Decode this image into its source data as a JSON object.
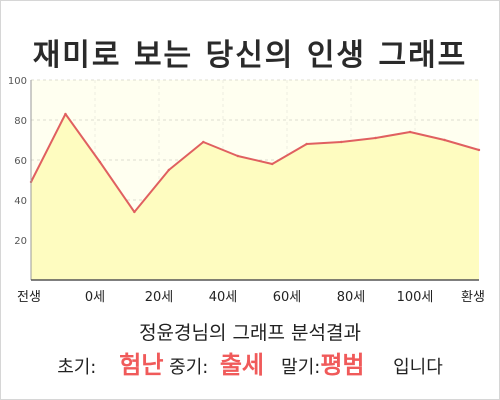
{
  "header": {
    "title": "재미로 보는 당신의 인생 그래프"
  },
  "chart_data": {
    "type": "area",
    "x_categories": [
      "전생",
      "0세",
      "20세",
      "40세",
      "60세",
      "80세",
      "100세",
      "환생"
    ],
    "x": [
      "전생",
      0,
      10,
      20,
      30,
      40,
      50,
      60,
      70,
      80,
      90,
      100,
      110,
      "환생"
    ],
    "values": [
      49,
      83,
      59,
      34,
      55,
      69,
      62,
      58,
      68,
      69,
      71,
      74,
      70,
      65
    ],
    "ylim": [
      0,
      100
    ],
    "yticks": [
      20,
      40,
      60,
      80,
      100
    ],
    "grid": true,
    "line_color": "#e06060",
    "fill_color": "#fefcc0",
    "plot_background": "#fffff0"
  },
  "summary": {
    "text": "정윤경님의 그래프 분석결과"
  },
  "result": {
    "early_label": "초기:",
    "early_value": "험난",
    "mid_label": "중기:",
    "mid_value": "출세",
    "late_label": "말기:",
    "late_value": "평범",
    "ending": "입니다"
  },
  "colors": {
    "highlight": "#f05a5a",
    "text": "#222222"
  }
}
